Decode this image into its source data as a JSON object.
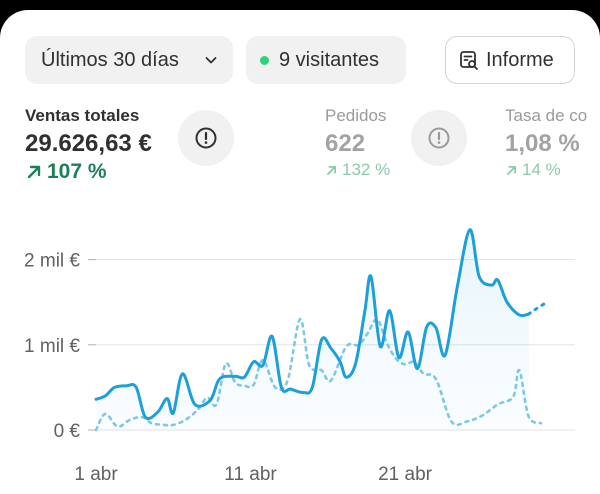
{
  "toolbar": {
    "range_label": "Últimos 30 días",
    "visitors_label": "9 visitantes",
    "report_label": "Informe"
  },
  "metrics": [
    {
      "label": "Ventas totales",
      "value": "29.626,63 €",
      "change": "107 %"
    },
    {
      "label": "Pedidos",
      "value": "622",
      "change": "132 %"
    },
    {
      "label": "Tasa de co",
      "value": "1,08 %",
      "change": "14 %"
    }
  ],
  "colors": {
    "accent": "#1d9fd9",
    "comparison": "#7ec8e3",
    "positive": "#1b7f57",
    "live_dot": "#2fd37a"
  },
  "icons": {
    "range": "chevron-down-icon",
    "visitors": "status-dot",
    "report": "report-search-icon",
    "info": "exclamation-circle-icon",
    "change": "arrow-up-right-icon"
  },
  "chart_data": {
    "type": "line",
    "y_ticks": [
      {
        "label": "0 €",
        "value": 0
      },
      {
        "label": "1 mil €",
        "value": 1000
      },
      {
        "label": "2 mil €",
        "value": 2000
      }
    ],
    "x_ticks": [
      {
        "label": "1 abr",
        "x": 0
      },
      {
        "label": "11 abr",
        "x": 10
      },
      {
        "label": "21 abr",
        "x": 20
      }
    ],
    "ylim": [
      0,
      2300
    ],
    "xlim": [
      0,
      31
    ],
    "series": [
      {
        "style": "solid",
        "points": [
          [
            0,
            360
          ],
          [
            0.6,
            400
          ],
          [
            1.2,
            500
          ],
          [
            2,
            520
          ],
          [
            2.6,
            500
          ],
          [
            3.2,
            150
          ],
          [
            4,
            210
          ],
          [
            4.6,
            370
          ],
          [
            5,
            200
          ],
          [
            5.6,
            660
          ],
          [
            6.4,
            300
          ],
          [
            7.4,
            350
          ],
          [
            8,
            600
          ],
          [
            9,
            630
          ],
          [
            9.6,
            620
          ],
          [
            10.2,
            800
          ],
          [
            10.8,
            760
          ],
          [
            11.4,
            1100
          ],
          [
            12,
            500
          ],
          [
            12.6,
            480
          ],
          [
            13.4,
            440
          ],
          [
            14,
            500
          ],
          [
            14.6,
            1060
          ],
          [
            15.2,
            960
          ],
          [
            15.8,
            800
          ],
          [
            16.2,
            620
          ],
          [
            16.8,
            780
          ],
          [
            17.4,
            1400
          ],
          [
            17.8,
            1800
          ],
          [
            18.4,
            980
          ],
          [
            19,
            1400
          ],
          [
            19.6,
            850
          ],
          [
            20.2,
            1150
          ],
          [
            20.8,
            720
          ],
          [
            21.4,
            1210
          ],
          [
            22,
            1200
          ],
          [
            22.6,
            880
          ],
          [
            23.4,
            1700
          ],
          [
            24.2,
            2350
          ],
          [
            24.8,
            1800
          ],
          [
            25.6,
            1700
          ],
          [
            26,
            1760
          ],
          [
            26.6,
            1500
          ],
          [
            27.4,
            1350
          ],
          [
            28,
            1360
          ]
        ]
      },
      {
        "style": "dotted",
        "points": [
          [
            28,
            1360
          ],
          [
            28.4,
            1410
          ],
          [
            29,
            1480
          ]
        ]
      },
      {
        "style": "dashed",
        "points": [
          [
            0,
            0
          ],
          [
            0.6,
            190
          ],
          [
            1.4,
            40
          ],
          [
            2.2,
            120
          ],
          [
            3,
            150
          ],
          [
            3.6,
            80
          ],
          [
            4.4,
            60
          ],
          [
            5,
            60
          ],
          [
            5.8,
            120
          ],
          [
            6.6,
            240
          ],
          [
            7.2,
            380
          ],
          [
            7.8,
            300
          ],
          [
            8.4,
            780
          ],
          [
            9,
            560
          ],
          [
            9.6,
            520
          ],
          [
            10.2,
            530
          ],
          [
            10.8,
            820
          ],
          [
            11.6,
            500
          ],
          [
            12.4,
            580
          ],
          [
            13.2,
            1300
          ],
          [
            13.8,
            760
          ],
          [
            14.6,
            700
          ],
          [
            15.2,
            580
          ],
          [
            16.2,
            980
          ],
          [
            17,
            1000
          ],
          [
            17.6,
            1140
          ],
          [
            18.2,
            1300
          ],
          [
            18.8,
            1030
          ],
          [
            19.4,
            840
          ],
          [
            20,
            770
          ],
          [
            20.6,
            800
          ],
          [
            21.2,
            660
          ],
          [
            22,
            600
          ],
          [
            23,
            100
          ],
          [
            24,
            100
          ],
          [
            25,
            170
          ],
          [
            26,
            300
          ],
          [
            27,
            390
          ],
          [
            27.4,
            700
          ],
          [
            28,
            160
          ],
          [
            28.8,
            80
          ]
        ]
      }
    ]
  }
}
